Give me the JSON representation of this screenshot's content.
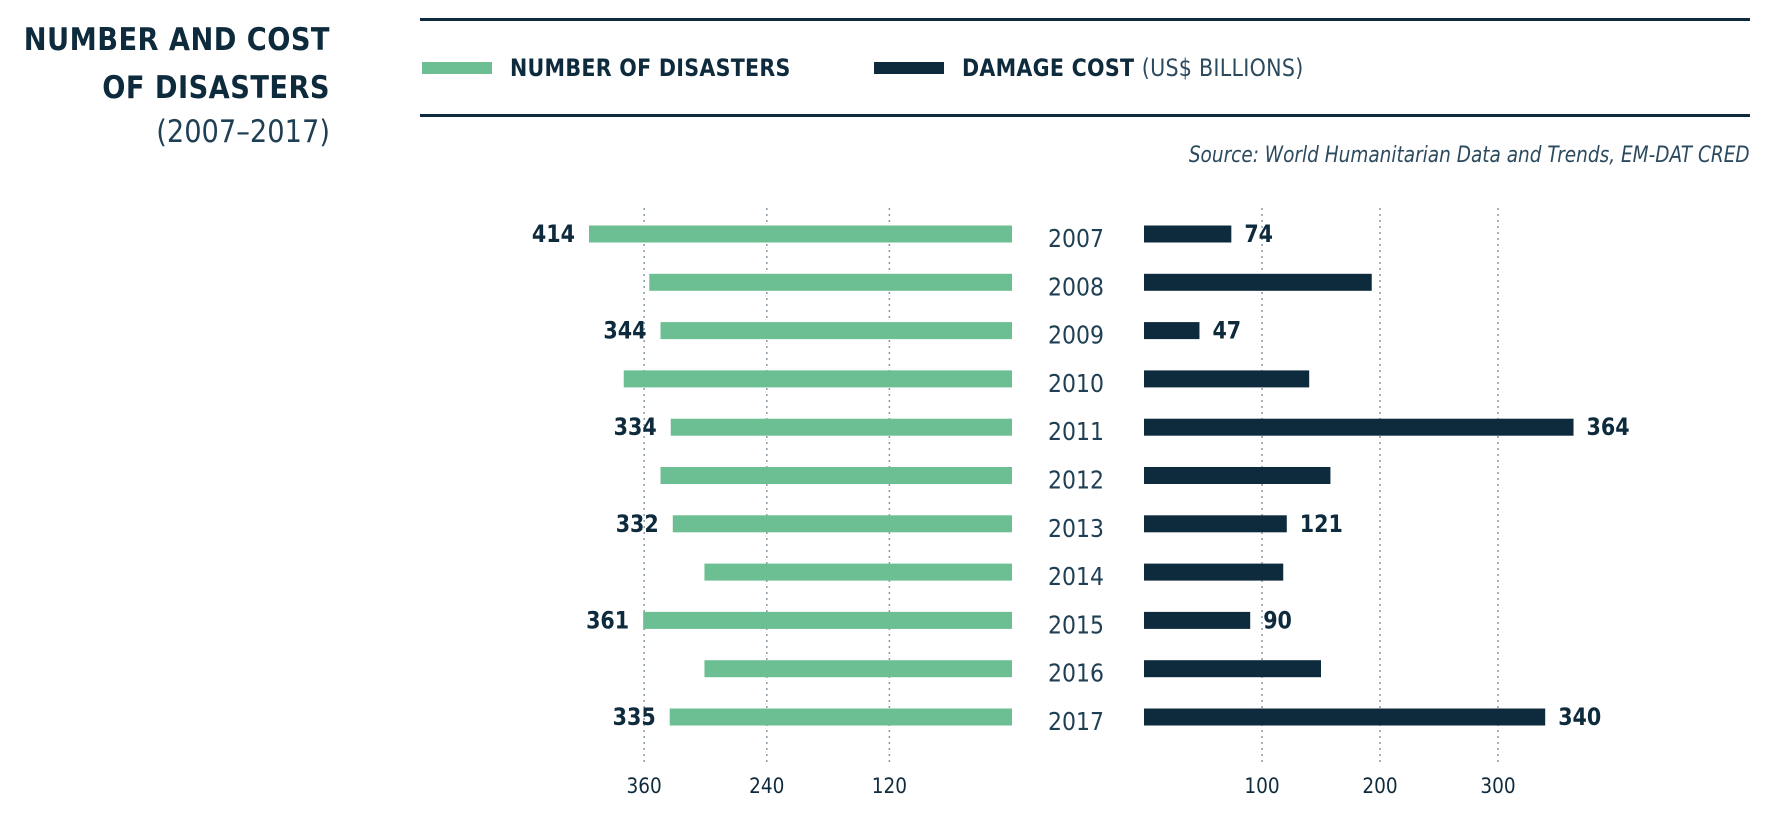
{
  "header": {
    "title_line1": "NUMBER AND COST",
    "title_line2": "OF DISASTERS",
    "subtitle": "(2007–2017)",
    "source": "Source: World Humanitarian Data and Trends, EM-DAT CRED"
  },
  "legend": {
    "disasters_label": "NUMBER OF DISASTERS",
    "damage_label": "DAMAGE COST",
    "damage_unit": "(US$ BILLIONS)"
  },
  "colors": {
    "disasters": "#6cbf92",
    "damage": "#0e2a3d",
    "text": "#0e2a3d",
    "grid": "#8a9aa6"
  },
  "chart_data": [
    {
      "type": "bar",
      "orientation": "horizontal",
      "direction": "right-to-left",
      "series": [
        {
          "name": "NUMBER OF DISASTERS",
          "values": [
            414,
            355,
            344,
            380,
            334,
            344,
            332,
            301,
            361,
            301,
            335
          ]
        }
      ],
      "categories": [
        "2007",
        "2008",
        "2009",
        "2010",
        "2011",
        "2012",
        "2013",
        "2014",
        "2015",
        "2016",
        "2017"
      ],
      "labeled_values": [
        "414",
        "",
        "344",
        "",
        "334",
        "",
        "332",
        "",
        "361",
        "",
        "335"
      ],
      "x_ticks": [
        360,
        240,
        120
      ],
      "xlim": [
        0,
        420
      ],
      "grid": true
    },
    {
      "type": "bar",
      "orientation": "horizontal",
      "series": [
        {
          "name": "DAMAGE COST (US$ BILLIONS)",
          "values": [
            74,
            193,
            47,
            140,
            364,
            158,
            121,
            118,
            90,
            150,
            340
          ]
        }
      ],
      "categories": [
        "2007",
        "2008",
        "2009",
        "2010",
        "2011",
        "2012",
        "2013",
        "2014",
        "2015",
        "2016",
        "2017"
      ],
      "labeled_values": [
        "74",
        "",
        "47",
        "",
        "364",
        "",
        "121",
        "",
        "90",
        "",
        "340"
      ],
      "x_ticks": [
        100,
        200,
        300
      ],
      "xlim": [
        0,
        400
      ],
      "grid": true
    }
  ]
}
